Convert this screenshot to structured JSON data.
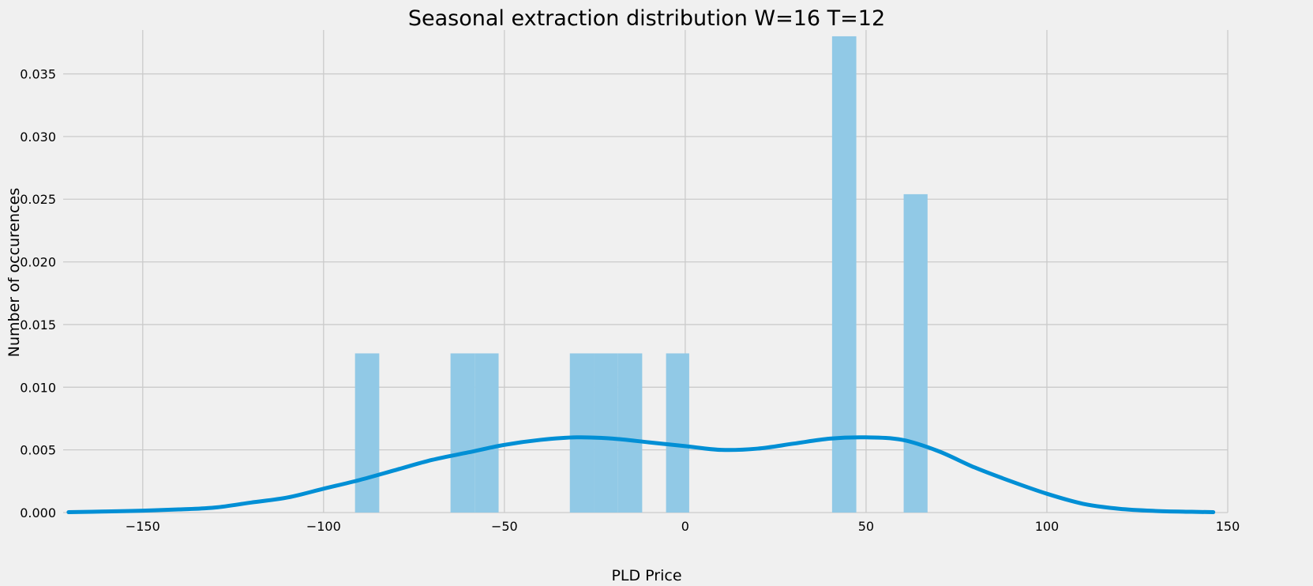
{
  "chart_data": {
    "type": "bar",
    "title": "Seasonal extraction distribution W=16 T=12",
    "xlabel": "PLD Price",
    "ylabel": "Number of occurences",
    "xlim": [
      -172,
      150
    ],
    "ylim": [
      0,
      0.0385
    ],
    "grid": true,
    "colors": {
      "background": "#f0f0f0",
      "grid": "#cbcbcb",
      "bars": "#91c9e6",
      "kde": "#008fd5"
    },
    "x_ticks": [
      -150,
      -100,
      -50,
      0,
      50,
      100,
      150
    ],
    "x_tick_labels": [
      "−150",
      "−100",
      "−50",
      "0",
      "50",
      "100",
      "150"
    ],
    "y_ticks": [
      0,
      0.005,
      0.01,
      0.015,
      0.02,
      0.025,
      0.03,
      0.035
    ],
    "y_tick_labels": [
      "0.000",
      "0.005",
      "0.010",
      "0.015",
      "0.020",
      "0.025",
      "0.030",
      "0.035"
    ],
    "histogram": [
      {
        "x0": -91.3,
        "x1": -84.6,
        "density": 0.0127
      },
      {
        "x0": -64.9,
        "x1": -58.2,
        "density": 0.0127
      },
      {
        "x0": -58.2,
        "x1": -51.6,
        "density": 0.0127
      },
      {
        "x0": -31.9,
        "x1": -25.2,
        "density": 0.0127
      },
      {
        "x0": -25.2,
        "x1": -18.6,
        "density": 0.0127
      },
      {
        "x0": -18.6,
        "x1": -11.9,
        "density": 0.0127
      },
      {
        "x0": -5.3,
        "x1": 1.1,
        "density": 0.0127
      },
      {
        "x0": 40.6,
        "x1": 47.3,
        "density": 0.038
      },
      {
        "x0": 60.4,
        "x1": 67.0,
        "density": 0.0254
      }
    ],
    "kde": {
      "name": "",
      "x": [
        -170.5,
        -160,
        -150,
        -140,
        -130,
        -120,
        -110,
        -100,
        -90,
        -80,
        -70,
        -60,
        -50,
        -40,
        -30,
        -20,
        -10,
        0,
        10,
        20,
        30,
        40,
        50,
        60,
        70,
        80,
        90,
        100,
        110,
        120,
        130,
        140,
        146
      ],
      "y": [
        3e-05,
        9e-05,
        0.00015,
        0.00025,
        0.0004,
        0.0008,
        0.0012,
        0.0019,
        0.0026,
        0.0034,
        0.0042,
        0.0048,
        0.0054,
        0.0058,
        0.006,
        0.0059,
        0.0056,
        0.0053,
        0.005,
        0.0051,
        0.0055,
        0.0059,
        0.006,
        0.0058,
        0.0049,
        0.0036,
        0.0025,
        0.0015,
        0.0007,
        0.0003,
        0.00013,
        6e-05,
        3e-05
      ]
    }
  }
}
